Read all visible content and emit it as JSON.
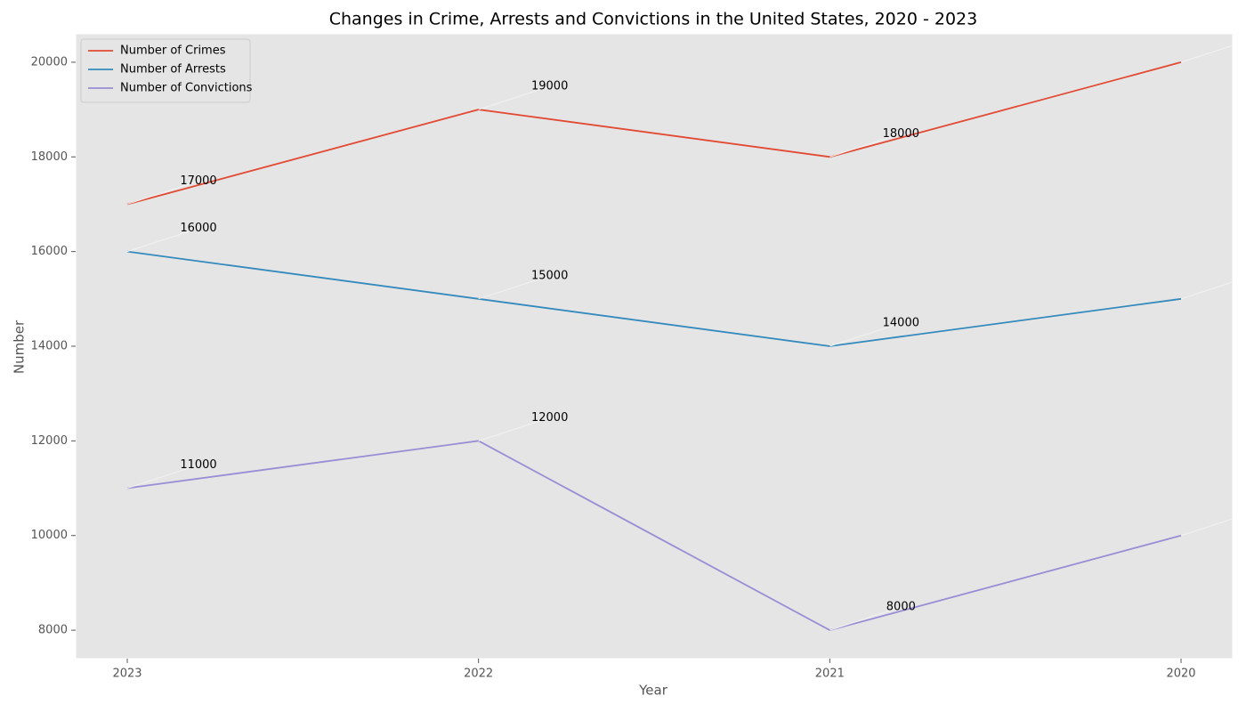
{
  "chart_data": {
    "type": "line",
    "title": "Changes in Crime, Arrests and Convictions in the United States, 2020 - 2023",
    "xlabel": "Year",
    "ylabel": "Number",
    "categories": [
      "2023",
      "2022",
      "2021",
      "2020"
    ],
    "series": [
      {
        "name": "Number of Crimes",
        "color": "#e24a33",
        "values": [
          17000,
          19000,
          18000,
          20000
        ]
      },
      {
        "name": "Number of Arrests",
        "color": "#348abd",
        "values": [
          16000,
          15000,
          14000,
          15000
        ]
      },
      {
        "name": "Number of Convictions",
        "color": "#988ed5",
        "values": [
          11000,
          12000,
          8000,
          10000
        ]
      }
    ],
    "ylim": [
      7400,
      20600
    ],
    "yticks": [
      8000,
      10000,
      12000,
      14000,
      16000,
      18000,
      20000
    ],
    "grid": false,
    "legend": "upper left"
  }
}
